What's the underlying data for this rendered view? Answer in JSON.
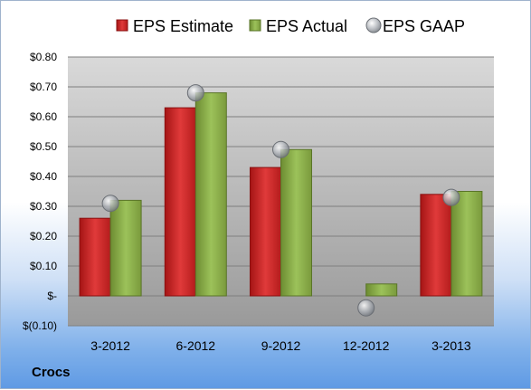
{
  "company": "Crocs",
  "chart_data": {
    "type": "bar",
    "categories": [
      "3-2012",
      "6-2012",
      "9-2012",
      "12-2012",
      "3-2013"
    ],
    "series": [
      {
        "name": "EPS Estimate",
        "type": "bar",
        "color": "#d42a2a",
        "values": [
          0.26,
          0.63,
          0.43,
          0.0,
          0.34
        ]
      },
      {
        "name": "EPS Actual",
        "type": "bar",
        "color": "#8db04c",
        "values": [
          0.32,
          0.68,
          0.49,
          0.04,
          0.35
        ]
      },
      {
        "name": "EPS GAAP",
        "type": "marker",
        "color": "#b8bcc2",
        "values": [
          0.31,
          0.68,
          0.49,
          -0.04,
          0.33
        ]
      }
    ],
    "ylim": [
      -0.1,
      0.8
    ],
    "yticks": [
      -0.1,
      0.0,
      0.1,
      0.2,
      0.3,
      0.4,
      0.5,
      0.6,
      0.7,
      0.8
    ],
    "ytick_labels": [
      "$(0.10)",
      "$-",
      "$0.10",
      "$0.20",
      "$0.30",
      "$0.40",
      "$0.50",
      "$0.60",
      "$0.70",
      "$0.80"
    ],
    "grid": true,
    "legend_position": "top"
  }
}
